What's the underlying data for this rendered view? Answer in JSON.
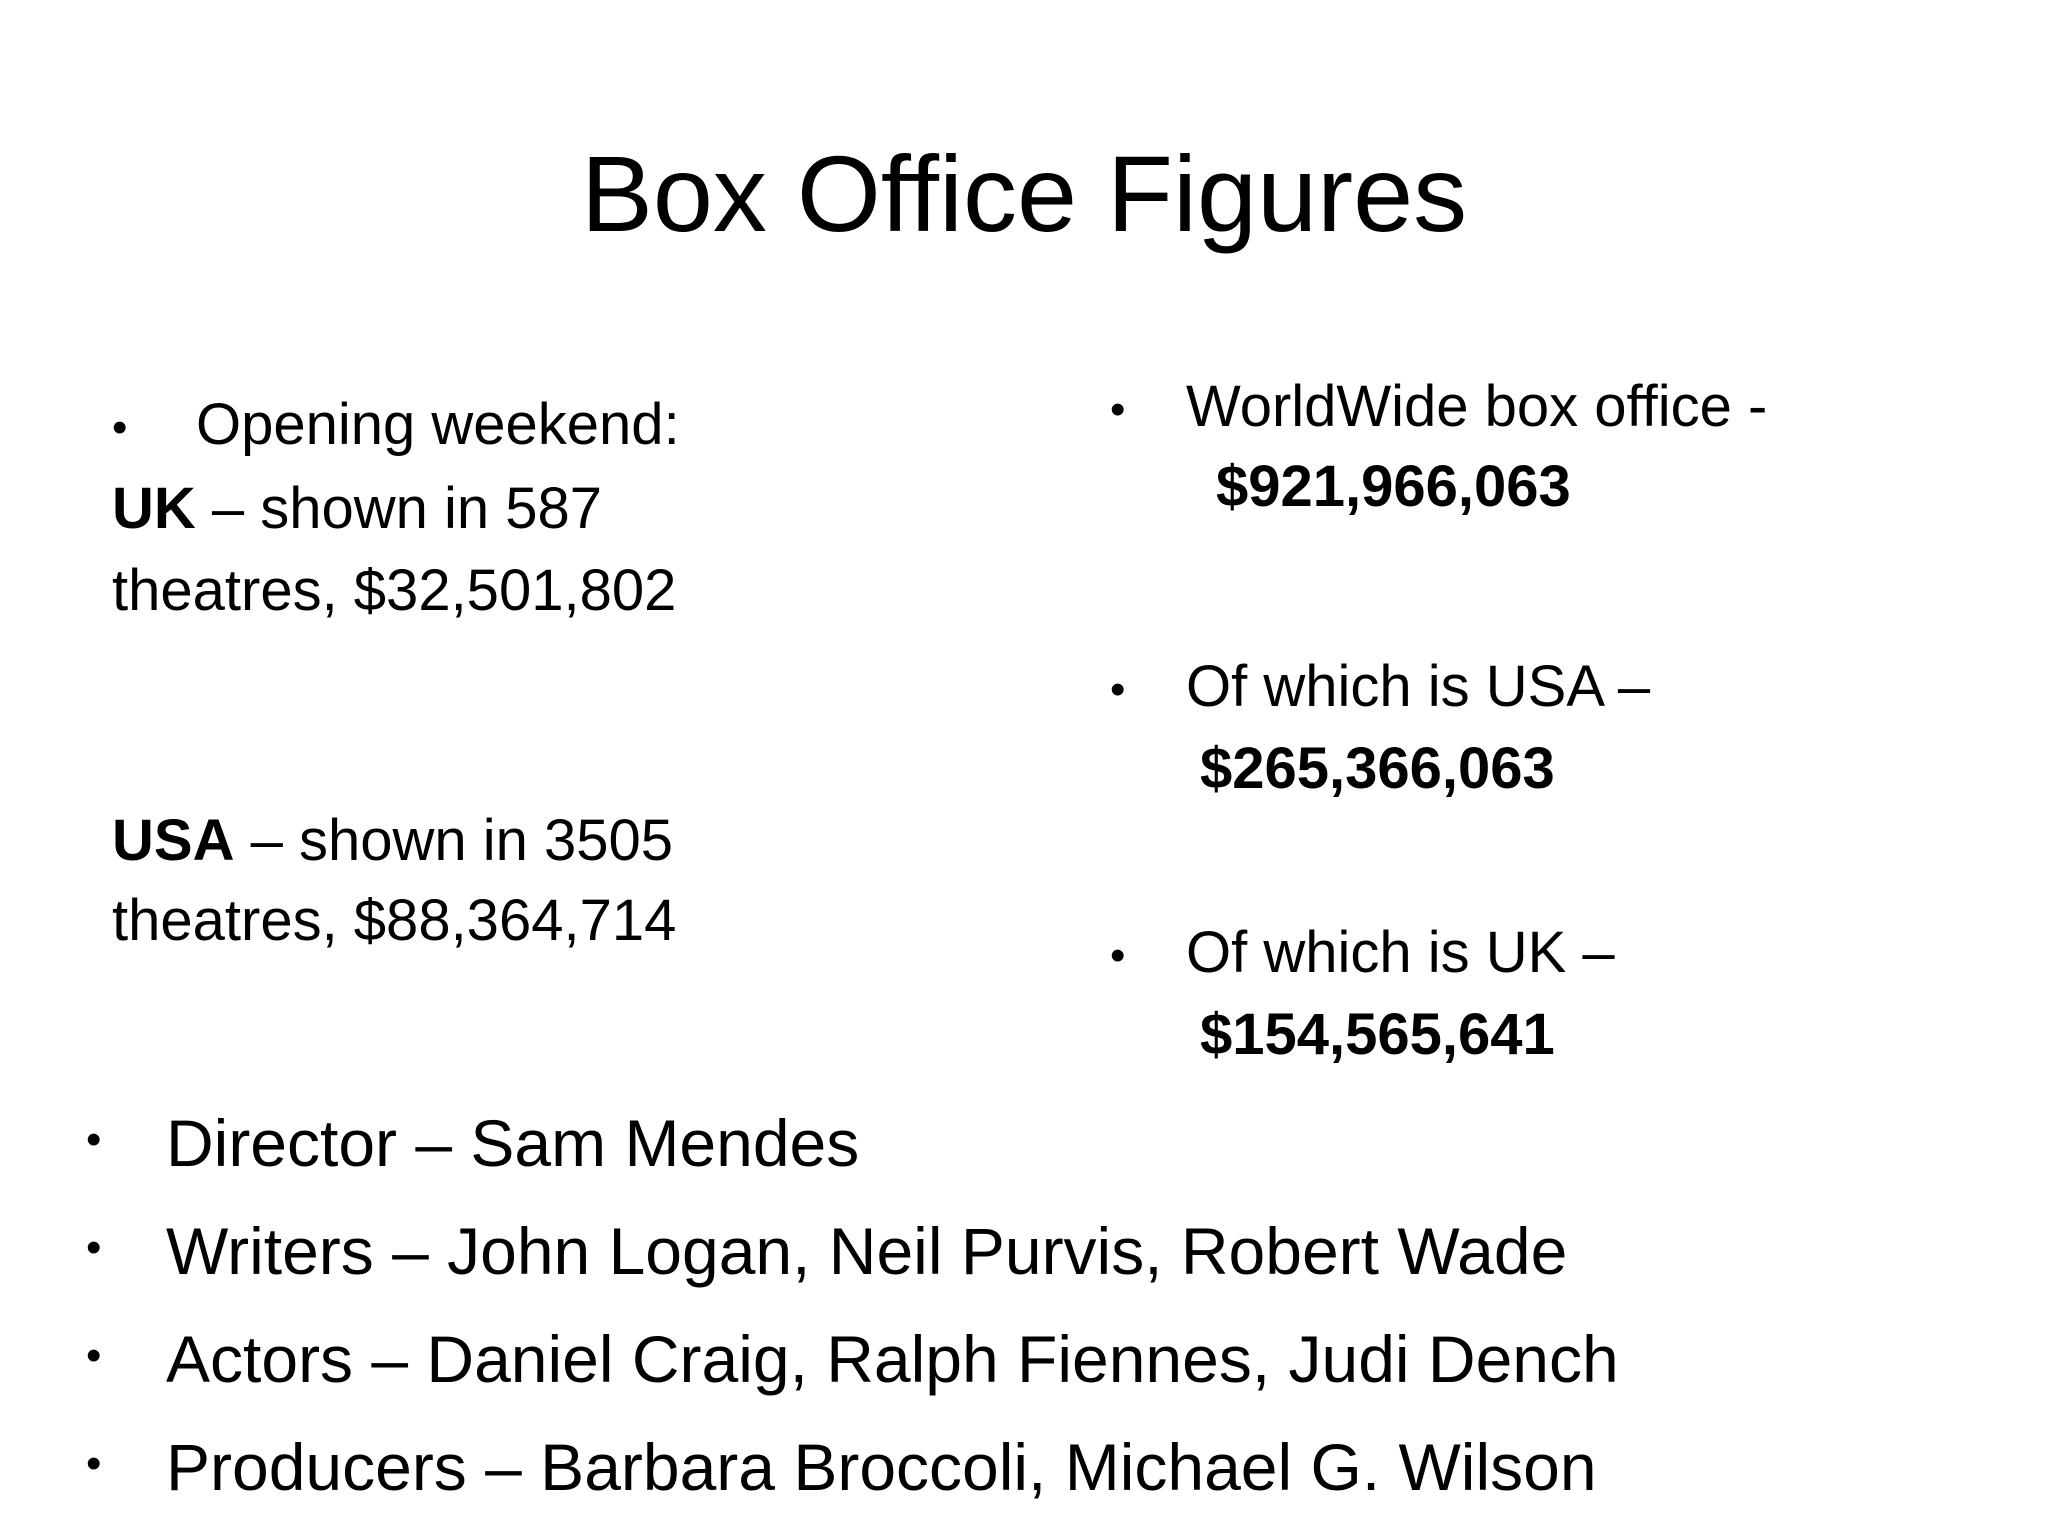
{
  "title": "Box Office Figures",
  "left_column": {
    "bullet_text": "Opening weekend:",
    "uk_label": "UK",
    "uk_detail": " – shown in 587",
    "uk_line2": "theatres, $32,501,802",
    "usa_label": "USA",
    "usa_detail": " – shown in 3505",
    "usa_line2": "theatres, $88,364,714"
  },
  "right_column": {
    "items": [
      {
        "label": "WorldWide box office -",
        "value": "$921,966,063"
      },
      {
        "label": "Of which is USA –",
        "value": "$265,366,063"
      },
      {
        "label": "Of which is UK –",
        "value": "$154,565,641"
      }
    ]
  },
  "credits": [
    {
      "text": "Director – Sam Mendes"
    },
    {
      "text": "Writers –  John Logan, Neil Purvis, Robert Wade"
    },
    {
      "text": "Actors –  Daniel Craig, Ralph Fiennes, Judi Dench"
    },
    {
      "text": "Producers – Barbara Broccoli,  Michael G. Wilson"
    }
  ],
  "bullet_glyph": "•"
}
